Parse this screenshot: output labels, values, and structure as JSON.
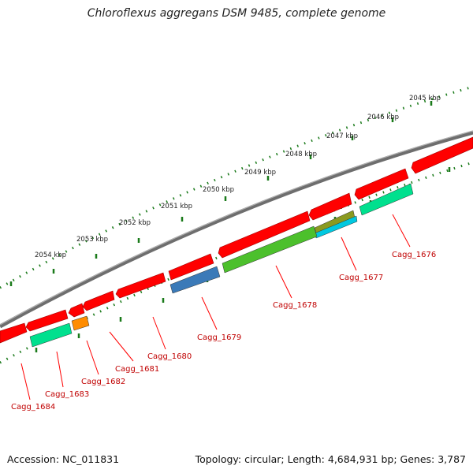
{
  "title": "Chloroflexus aggregans DSM 9485, complete genome",
  "footer": {
    "accession": "Accession: NC_011831",
    "summary": "Topology: circular; Length: 4,684,931 bp; Genes: 3,787"
  },
  "colors": {
    "backbone": "#808080",
    "tick": "#1a7a1a",
    "label": "#c00000",
    "cds_red": "#ff0000",
    "teal": "#00d88a",
    "green": "#4cc02c",
    "blue": "#3b7ab8",
    "orange": "#ff8c00",
    "cyan": "#00c8e0",
    "olive": "#8a9a20"
  },
  "ruler": [
    {
      "label": "2045 kbp"
    },
    {
      "label": "2046 kbp"
    },
    {
      "label": "2047 kbp"
    },
    {
      "label": "2048 kbp"
    },
    {
      "label": "2049 kbp"
    },
    {
      "label": "2050 kbp"
    },
    {
      "label": "2051 kbp"
    },
    {
      "label": "2052 kbp"
    },
    {
      "label": "2053 kbp"
    },
    {
      "label": "2054 kbp"
    }
  ],
  "gene_labels": [
    {
      "label": "Cagg_1676"
    },
    {
      "label": "Cagg_1677"
    },
    {
      "label": "Cagg_1678"
    },
    {
      "label": "Cagg_1679"
    },
    {
      "label": "Cagg_1680"
    },
    {
      "label": "Cagg_1681"
    },
    {
      "label": "Cagg_1682"
    },
    {
      "label": "Cagg_1683"
    },
    {
      "label": "Cagg_1684"
    }
  ]
}
